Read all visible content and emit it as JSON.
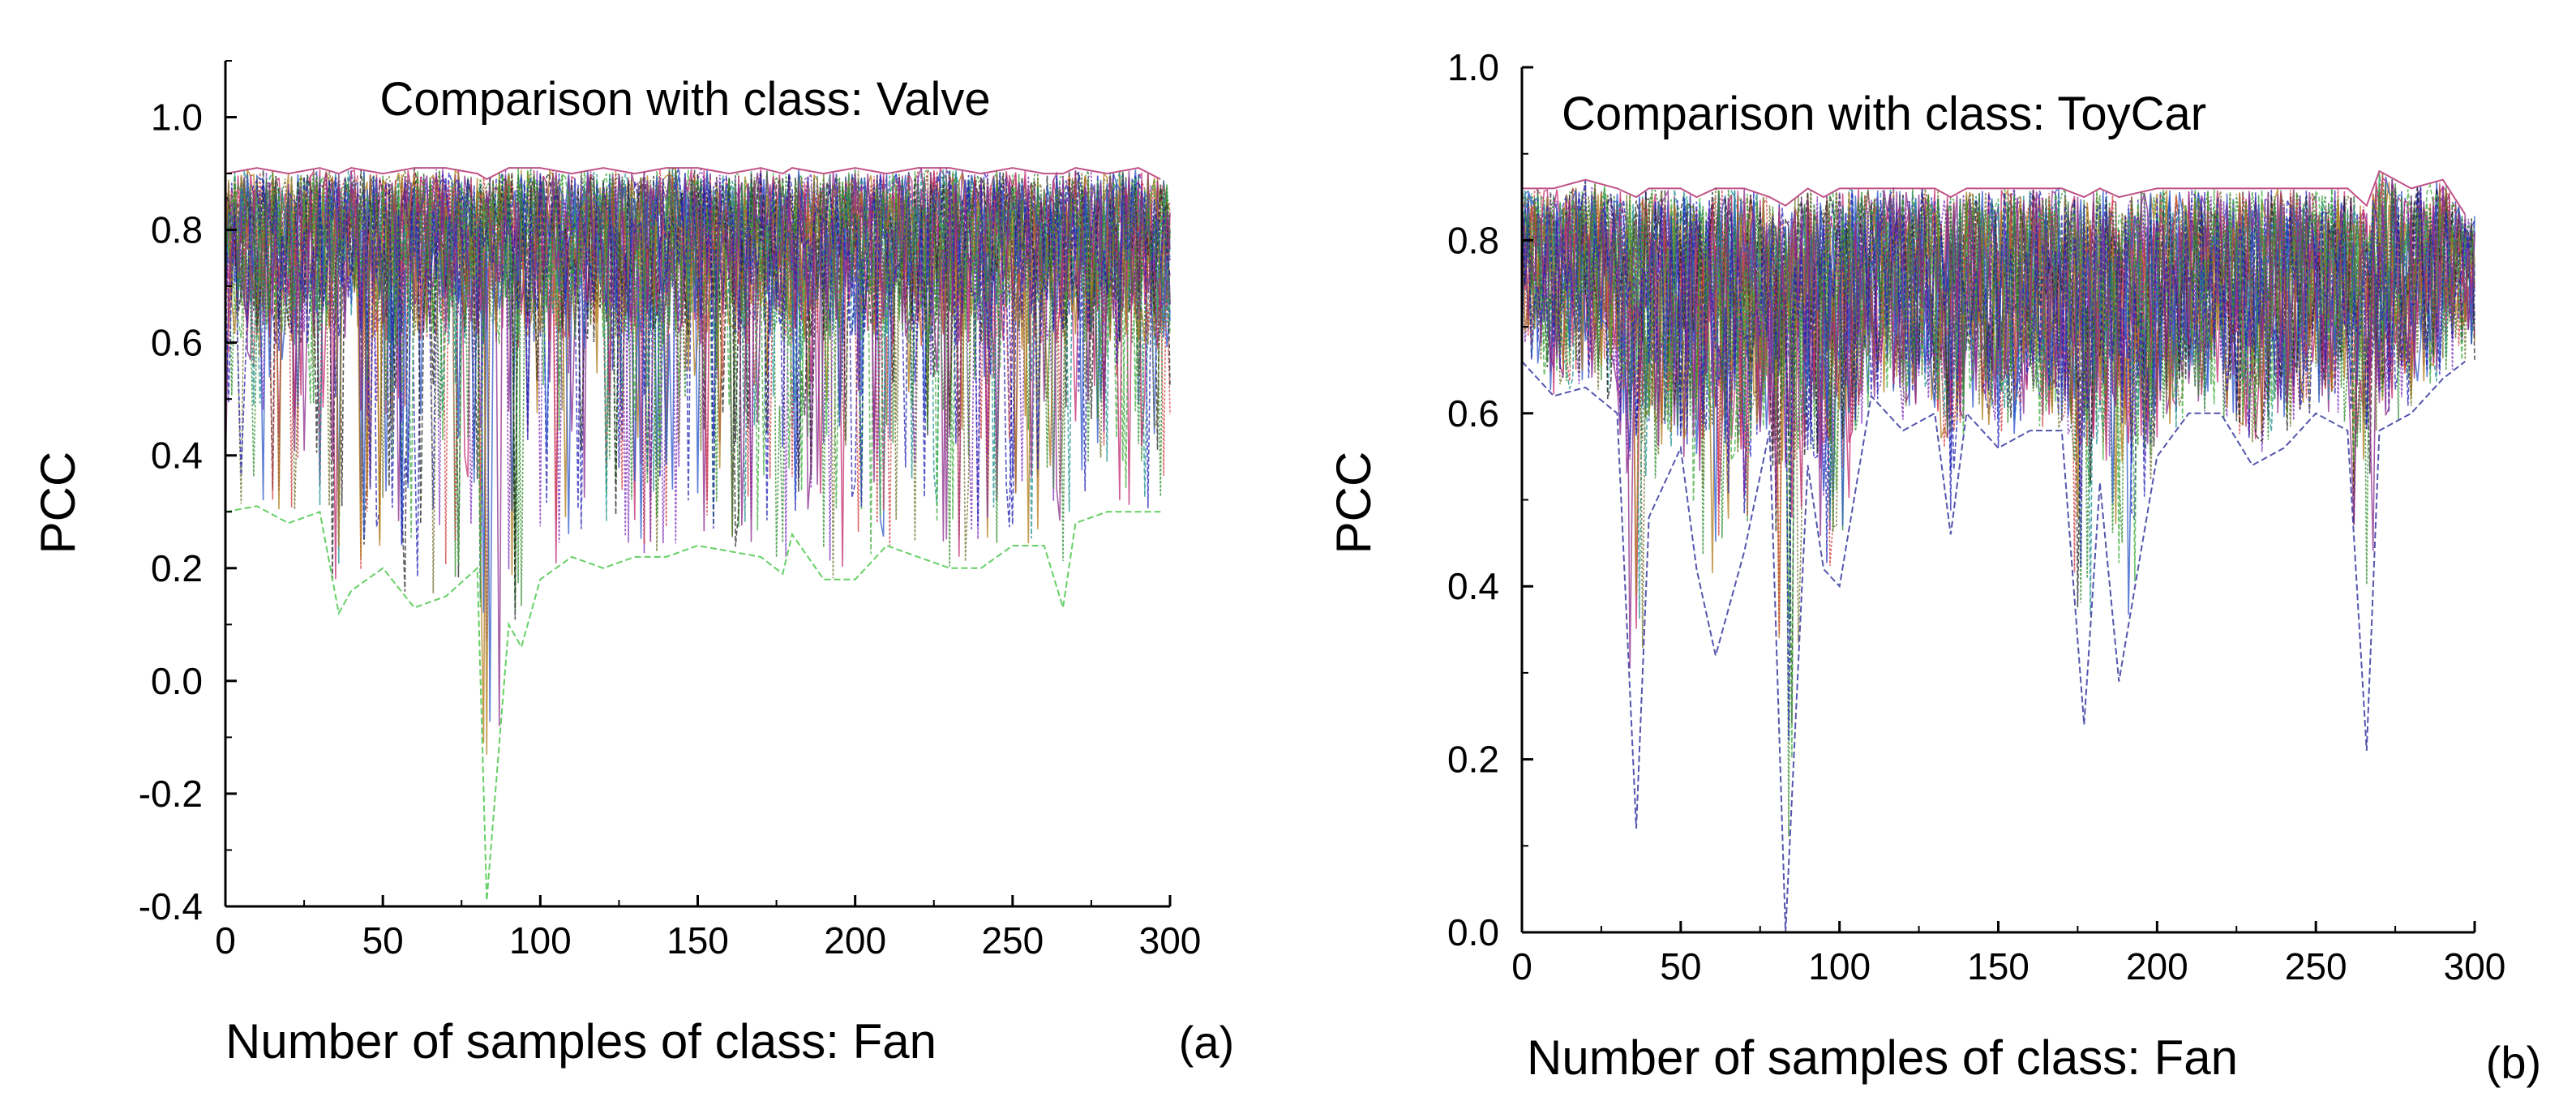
{
  "chart_data": [
    {
      "type": "line",
      "panel_label": "(a)",
      "title": "Comparison with class: Valve",
      "xlabel": "Number of samples of class: Fan",
      "ylabel": "PCC",
      "xlim": [
        0,
        300
      ],
      "ylim": [
        -0.4,
        1.1
      ],
      "xticks": [
        0,
        50,
        100,
        150,
        200,
        250,
        300
      ],
      "xtick_labels": [
        "0",
        "50",
        "100",
        "150",
        "200",
        "250",
        "300"
      ],
      "yticks": [
        -0.4,
        -0.2,
        0.0,
        0.2,
        0.4,
        0.6,
        0.8,
        1.0
      ],
      "ytick_labels": [
        "-0.4",
        "-0.2",
        "0.0",
        "0.2",
        "0.4",
        "0.6",
        "0.8",
        "1.0"
      ],
      "grid": false,
      "series_summary": {
        "description": "many overlapping series (one per sample of class Valve)",
        "envelope": {
          "x": [
            0,
            10,
            20,
            30,
            36,
            40,
            50,
            60,
            70,
            80,
            83,
            90,
            94,
            100,
            110,
            120,
            130,
            140,
            150,
            160,
            170,
            177,
            180,
            190,
            200,
            210,
            220,
            230,
            240,
            250,
            260,
            266,
            270,
            280,
            290,
            297
          ],
          "max": [
            0.9,
            0.91,
            0.9,
            0.91,
            0.9,
            0.91,
            0.9,
            0.91,
            0.91,
            0.9,
            0.89,
            0.91,
            0.91,
            0.91,
            0.9,
            0.91,
            0.9,
            0.91,
            0.91,
            0.9,
            0.91,
            0.9,
            0.91,
            0.9,
            0.91,
            0.9,
            0.91,
            0.91,
            0.9,
            0.91,
            0.9,
            0.9,
            0.91,
            0.9,
            0.91,
            0.89
          ],
          "min": [
            0.3,
            0.31,
            0.28,
            0.3,
            0.12,
            0.16,
            0.2,
            0.13,
            0.15,
            0.2,
            -0.39,
            0.1,
            0.06,
            0.18,
            0.22,
            0.2,
            0.22,
            0.22,
            0.24,
            0.23,
            0.22,
            0.19,
            0.26,
            0.18,
            0.18,
            0.24,
            0.22,
            0.2,
            0.2,
            0.24,
            0.24,
            0.13,
            0.28,
            0.3,
            0.3,
            0.3
          ]
        }
      }
    },
    {
      "type": "line",
      "panel_label": "(b)",
      "title": "Comparison with class: ToyCar",
      "xlabel": "Number of samples of class: Fan",
      "ylabel": "PCC",
      "xlim": [
        0,
        300
      ],
      "ylim": [
        0.0,
        1.0
      ],
      "xticks": [
        0,
        50,
        100,
        150,
        200,
        250,
        300
      ],
      "xtick_labels": [
        "0",
        "50",
        "100",
        "150",
        "200",
        "250",
        "300"
      ],
      "yticks": [
        0.0,
        0.2,
        0.4,
        0.6,
        0.8,
        1.0
      ],
      "ytick_labels": [
        "0.0",
        "0.2",
        "0.4",
        "0.6",
        "0.8",
        "1.0"
      ],
      "grid": false,
      "series_summary": {
        "description": "many overlapping series (one per sample of class ToyCar)",
        "envelope": {
          "x": [
            0,
            10,
            20,
            30,
            36,
            40,
            50,
            55,
            61,
            70,
            78,
            83,
            90,
            95,
            100,
            110,
            120,
            130,
            135,
            140,
            150,
            160,
            170,
            177,
            182,
            188,
            200,
            210,
            220,
            230,
            240,
            250,
            260,
            266,
            270,
            280,
            290,
            297
          ],
          "max": [
            0.86,
            0.86,
            0.87,
            0.86,
            0.85,
            0.86,
            0.86,
            0.85,
            0.86,
            0.86,
            0.85,
            0.84,
            0.86,
            0.85,
            0.86,
            0.86,
            0.86,
            0.86,
            0.85,
            0.86,
            0.86,
            0.86,
            0.86,
            0.85,
            0.86,
            0.85,
            0.86,
            0.86,
            0.86,
            0.86,
            0.86,
            0.86,
            0.86,
            0.84,
            0.88,
            0.86,
            0.87,
            0.83
          ],
          "min": [
            0.66,
            0.62,
            0.63,
            0.6,
            0.12,
            0.48,
            0.56,
            0.42,
            0.32,
            0.44,
            0.58,
            0.0,
            0.54,
            0.42,
            0.4,
            0.62,
            0.58,
            0.6,
            0.46,
            0.6,
            0.56,
            0.58,
            0.58,
            0.24,
            0.52,
            0.29,
            0.55,
            0.6,
            0.6,
            0.54,
            0.56,
            0.6,
            0.58,
            0.21,
            0.58,
            0.6,
            0.64,
            0.66
          ]
        }
      }
    }
  ]
}
